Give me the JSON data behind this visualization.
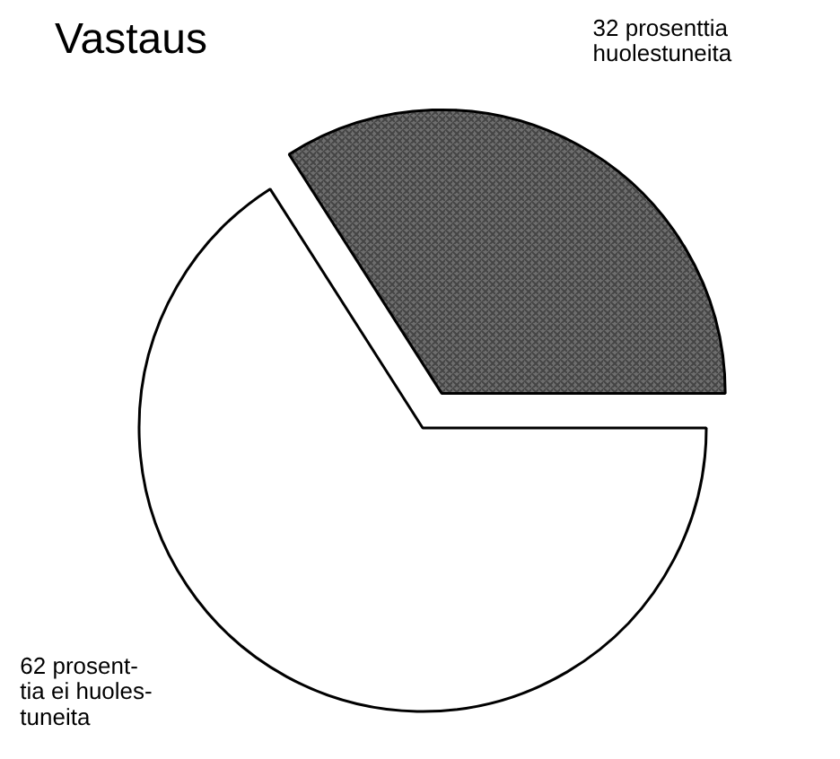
{
  "chart_data": {
    "type": "pie",
    "title": "Vastaus",
    "categories": [
      "32 prosenttia\nhuolestuneita",
      "62 prosent-\ntia ei huoles-\ntuneita"
    ],
    "values": [
      32,
      62
    ],
    "colors": [
      "#6e6e6e",
      "#ffffff"
    ]
  }
}
